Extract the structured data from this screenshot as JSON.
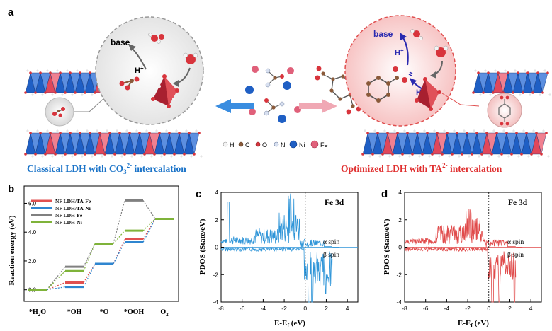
{
  "colors": {
    "ni_blue": "#1f5fc4",
    "fe_red": "#e0475a",
    "oxygen": "#d8343c",
    "left_caption": "#1a73c8",
    "right_caption": "#e03030",
    "arrow_blue": "#3a8de0",
    "arrow_pink": "#f0a8b4",
    "spin_blue": "#2f95d8",
    "spin_red": "#e04a4a",
    "series_fe": "#e05050",
    "series_ni": "#2f86d0",
    "series_ldh_fe": "#808080",
    "series_ldh_ni": "#7fb33a"
  },
  "panel_a": {
    "label": "a",
    "left_bubble": {
      "base": "base",
      "h_plus": "H",
      "h_plus_sup": "+"
    },
    "right_bubble": {
      "base": "base",
      "h_plus_top": "H",
      "h_plus_top_sup": "+",
      "h_plus_bottom": "H",
      "h_plus_bottom_sup": "+"
    },
    "legend": [
      {
        "symbol": "H",
        "color": "#f4f4f4",
        "stroke": "#999999"
      },
      {
        "symbol": "C",
        "color": "#8a5a3a",
        "stroke": "#5a3a20"
      },
      {
        "symbol": "O",
        "color": "#d8343c",
        "stroke": "#8a1a20"
      },
      {
        "symbol": "N",
        "color": "#d8e0f0",
        "stroke": "#7080a0"
      },
      {
        "symbol": "Ni",
        "color": "#1f5fc4",
        "stroke": "#0f3a80"
      },
      {
        "symbol": "Fe",
        "color": "#e0607a",
        "stroke": "#a0304a"
      }
    ],
    "left_caption": {
      "text": "Classical LDH with CO",
      "sub": "3",
      "sup": "2-",
      "tail": " intercalation"
    },
    "right_caption": {
      "text": "Optimized LDH with TA",
      "sup": "2-",
      "tail": " intercalation"
    }
  },
  "panel_b": {
    "label": "b",
    "chart_data": {
      "type": "line",
      "ylabel": "Reaction energy (eV)",
      "categories": [
        "*H2O",
        "*OH",
        "*O",
        "*OOH",
        "O2"
      ],
      "category_labels": [
        {
          "base": "*H",
          "sub": "2",
          "tail": "O"
        },
        {
          "base": "*OH",
          "sub": "",
          "tail": ""
        },
        {
          "base": "*O",
          "sub": "",
          "tail": ""
        },
        {
          "base": "*OOH",
          "sub": "",
          "tail": ""
        },
        {
          "base": "O",
          "sub": "2",
          "tail": ""
        }
      ],
      "yticks": [
        "0.0",
        "2.0",
        "4.0",
        "6.0"
      ],
      "ylim": [
        -0.8,
        7.2
      ],
      "series": [
        {
          "name": "NF LDH/TA-Fe",
          "color": "#e05050",
          "values": [
            0.0,
            0.5,
            1.8,
            3.5,
            4.92
          ]
        },
        {
          "name": "NF LDH/TA-Ni",
          "color": "#2f86d0",
          "values": [
            0.0,
            0.2,
            1.8,
            3.3,
            4.92
          ]
        },
        {
          "name": "NF LDH-Fe",
          "color": "#808080",
          "values": [
            0.0,
            1.6,
            3.2,
            6.2,
            4.92
          ]
        },
        {
          "name": "NF LDH-Ni",
          "color": "#7fb33a",
          "values": [
            0.0,
            1.3,
            3.2,
            4.1,
            4.92
          ]
        }
      ]
    }
  },
  "panel_c": {
    "label": "c",
    "chart_data": {
      "type": "line",
      "title": "Fe 3d",
      "ylabel": "PDOS (State/eV)",
      "xlabel": "E-E",
      "xlabel_sub": "f",
      "xlabel_tail": " (eV)",
      "xticks": [
        "-8",
        "-6",
        "-4",
        "-2",
        "0",
        "2",
        "4"
      ],
      "yticks": [
        "4",
        "2",
        "0",
        "-2",
        "-4"
      ],
      "xlim": [
        -8,
        5
      ],
      "ylim": [
        -4,
        4
      ],
      "alpha_label": "α spin",
      "beta_label": "β spin",
      "seed": 7,
      "color": "#2f95d8"
    }
  },
  "panel_d": {
    "label": "d",
    "chart_data": {
      "type": "line",
      "title": "Fe 3d",
      "ylabel": "PDOS (State/eV)",
      "xlabel": "E-E",
      "xlabel_sub": "f",
      "xlabel_tail": " (eV)",
      "xticks": [
        "-8",
        "-6",
        "-4",
        "-2",
        "0",
        "2",
        "4"
      ],
      "yticks": [
        "4",
        "2",
        "0",
        "-2",
        "-4"
      ],
      "xlim": [
        -8,
        5
      ],
      "ylim": [
        -4,
        4
      ],
      "alpha_label": "α spin",
      "beta_label": "β spin",
      "seed": 13,
      "color": "#e04a4a"
    }
  }
}
